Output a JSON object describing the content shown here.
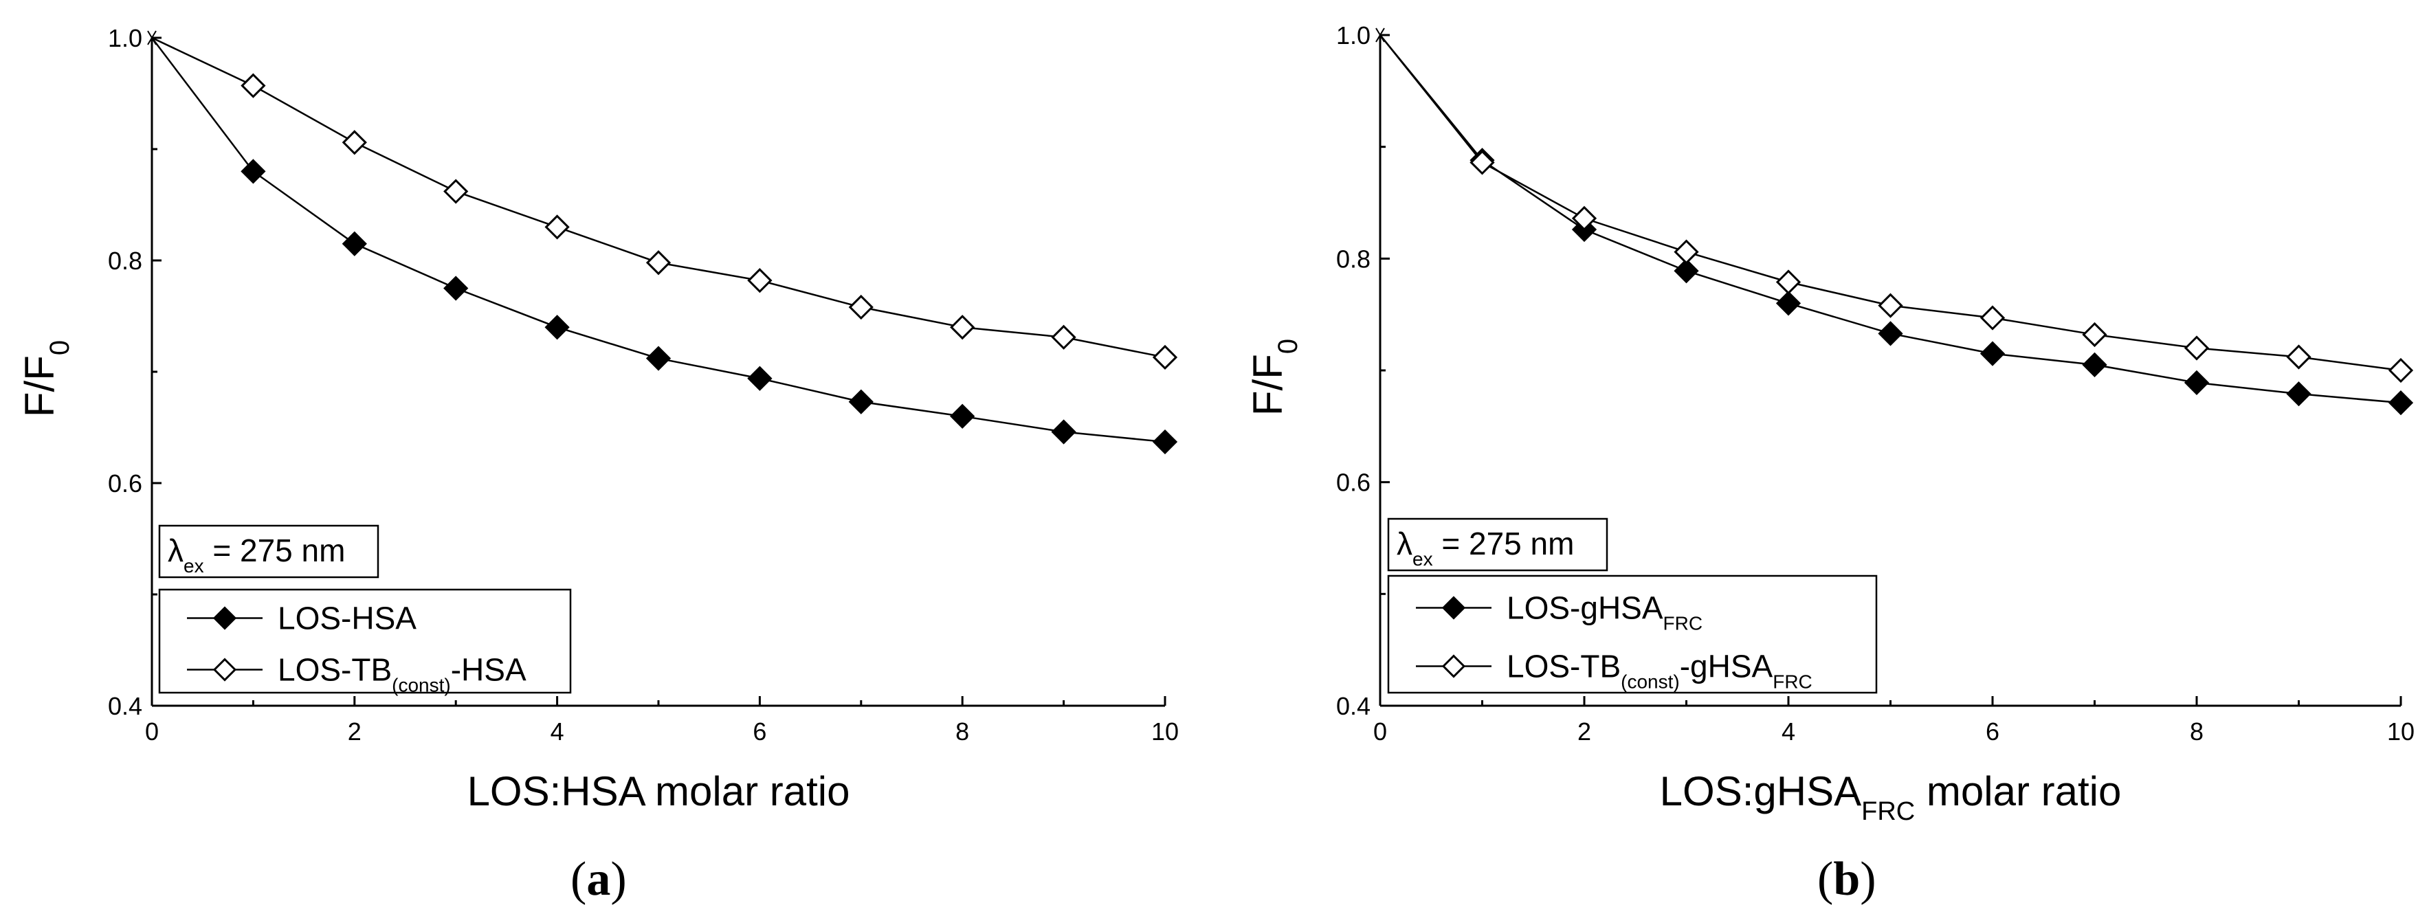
{
  "chart_data": [
    {
      "type": "line",
      "panel_label": "a",
      "xlabel": "LOS:HSA molar ratio",
      "ylabel": {
        "main": "F/F",
        "sub": "0"
      },
      "xlim": [
        0,
        10
      ],
      "ylim": [
        0.4,
        1.0
      ],
      "xticks": [
        0,
        2,
        4,
        6,
        8,
        10
      ],
      "yticks": [
        0.4,
        0.6,
        0.8,
        1.0
      ],
      "annotation": {
        "symbol": "λ",
        "sub": "ex",
        "text": " = 275 nm"
      },
      "series": [
        {
          "legend": [
            {
              "t": "LOS-HSA"
            }
          ],
          "marker": "filled-diamond",
          "x": [
            0,
            1,
            2,
            3,
            4,
            5,
            6,
            7,
            8,
            9,
            10
          ],
          "y": [
            1.0,
            0.88,
            0.815,
            0.775,
            0.74,
            0.712,
            0.694,
            0.673,
            0.66,
            0.646,
            0.637
          ]
        },
        {
          "legend": [
            {
              "t": "LOS-TB"
            },
            {
              "t": "(const)",
              "sub": true
            },
            {
              "t": "-HSA"
            }
          ],
          "marker": "open-diamond",
          "x": [
            0,
            1,
            2,
            3,
            4,
            5,
            6,
            7,
            8,
            9,
            10
          ],
          "y": [
            1.0,
            0.957,
            0.906,
            0.862,
            0.83,
            0.798,
            0.782,
            0.758,
            0.74,
            0.731,
            0.713
          ]
        }
      ]
    },
    {
      "type": "line",
      "panel_label": "b",
      "xlabel": "LOS:gHSA",
      "xlabel_sub": "FRC",
      "xlabel_tail": " molar ratio",
      "ylabel": {
        "main": "F/F",
        "sub": "0"
      },
      "xlim": [
        0,
        10
      ],
      "ylim": [
        0.4,
        1.0
      ],
      "xticks": [
        0,
        2,
        4,
        6,
        8,
        10
      ],
      "yticks": [
        0.4,
        0.6,
        0.8,
        1.0
      ],
      "annotation": {
        "symbol": "λ",
        "sub": "ex",
        "text": " = 275 nm"
      },
      "series": [
        {
          "legend": [
            {
              "t": "LOS-gHSA"
            },
            {
              "t": "FRC",
              "sub": true
            }
          ],
          "marker": "filled-diamond",
          "x": [
            0,
            1,
            2,
            3,
            4,
            5,
            6,
            7,
            8,
            9,
            10
          ],
          "y": [
            1.0,
            0.888,
            0.826,
            0.789,
            0.76,
            0.733,
            0.715,
            0.705,
            0.689,
            0.679,
            0.671
          ]
        },
        {
          "legend": [
            {
              "t": "LOS-TB"
            },
            {
              "t": "(const)",
              "sub": true
            },
            {
              "t": "-gHSA"
            },
            {
              "t": "FRC",
              "sub": true
            }
          ],
          "marker": "open-diamond",
          "x": [
            0,
            1,
            2,
            3,
            4,
            5,
            6,
            7,
            8,
            9,
            10
          ],
          "y": [
            1.0,
            0.886,
            0.836,
            0.806,
            0.779,
            0.758,
            0.747,
            0.732,
            0.72,
            0.712,
            0.7
          ]
        }
      ]
    }
  ]
}
